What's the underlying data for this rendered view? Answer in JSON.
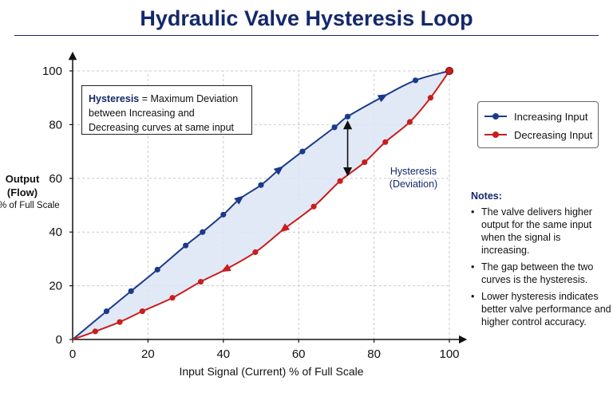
{
  "title": "Hydraulic Valve Hysteresis Loop",
  "definition": {
    "keyword": "Hysteresis",
    "text": "= Maximum Deviation between Increasing and Decreasing curves at same input"
  },
  "legend": {
    "increasing": "Increasing Input",
    "decreasing": "Decreasing Input"
  },
  "annotation": {
    "line1": "Hysteresis",
    "line2": "(Deviation)",
    "x": 73
  },
  "notes": {
    "title": "Notes:",
    "items": [
      "The valve delivers higher output for the same input when the signal is increasing.",
      "The gap between the two curves is the hysteresis.",
      "Lower hysteresis indicates better valve performance and higher control accuracy."
    ]
  },
  "colors": {
    "increasing": "#1b3a8a",
    "decreasing": "#c81e1e",
    "fill": "#dde5f4",
    "title": "#14286b"
  },
  "chart_data": {
    "type": "line",
    "xlabel": "Input Signal (Current)  % of Full Scale",
    "ylabel_main": "Output (Flow)",
    "ylabel_unit": "% of Full Scale",
    "xlim": [
      0,
      100
    ],
    "ylim": [
      0,
      100
    ],
    "xticks": [
      0,
      20,
      40,
      60,
      80,
      100
    ],
    "yticks": [
      0,
      20,
      40,
      60,
      80,
      100
    ],
    "grid": true,
    "legend_position": "right",
    "series": [
      {
        "name": "Increasing Input",
        "x": [
          0,
          9,
          15.5,
          22.5,
          30,
          34.5,
          40,
          44.5,
          50,
          55,
          61,
          69.5,
          73,
          82.5,
          91,
          100
        ],
        "y": [
          0,
          10.5,
          18,
          26,
          35,
          40,
          46.5,
          52.5,
          57.5,
          63.5,
          70,
          79,
          83,
          90.5,
          96.5,
          100
        ],
        "markers": [
          "dot",
          "dot",
          "dot",
          "dot",
          "dot",
          "dot",
          "dot",
          "arrow",
          "dot",
          "arrow",
          "dot",
          "dot",
          "dot",
          "arrow",
          "dot",
          "dot"
        ]
      },
      {
        "name": "Decreasing Input",
        "x": [
          0,
          6,
          12.5,
          18.5,
          26.5,
          34,
          40.5,
          48.5,
          56,
          64,
          71,
          77.5,
          83,
          89.5,
          95,
          100
        ],
        "y": [
          0,
          3,
          6.5,
          10.5,
          15.5,
          21.5,
          26,
          32.5,
          41,
          49.5,
          59,
          66,
          73.5,
          81,
          90,
          100
        ],
        "markers": [
          "dot",
          "dot",
          "dot",
          "dot",
          "dot",
          "dot",
          "arrow",
          "dot",
          "arrow",
          "dot",
          "dot",
          "dot",
          "dot",
          "dot",
          "dot",
          "dot"
        ]
      }
    ]
  }
}
